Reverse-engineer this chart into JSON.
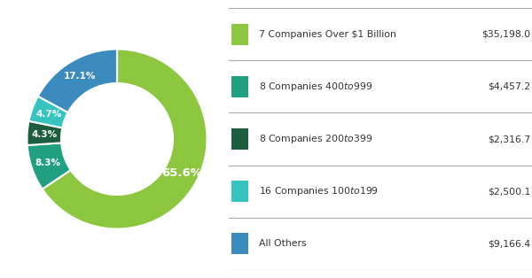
{
  "slices": [
    65.6,
    8.3,
    4.3,
    4.7,
    17.1
  ],
  "colors": [
    "#8DC63F",
    "#20A080",
    "#1B5E40",
    "#35C4C0",
    "#3B8BBE"
  ],
  "labels": [
    "65.6%",
    "8.3%",
    "4.3%",
    "4.7%",
    "17.1%"
  ],
  "legend_labels": [
    "7 Companies Over $1 Billion",
    "8 Companies $400 to $999",
    "8 Companies $200 to $399",
    "16 Companies $100 to $199",
    "All Others"
  ],
  "legend_values": [
    "$35,198.0",
    "$4,457.2",
    "$2,316.7",
    "$2,500.1",
    "$9,166.4"
  ],
  "background_color": "#FFFFFF",
  "text_color": "#333333",
  "startangle": 90
}
